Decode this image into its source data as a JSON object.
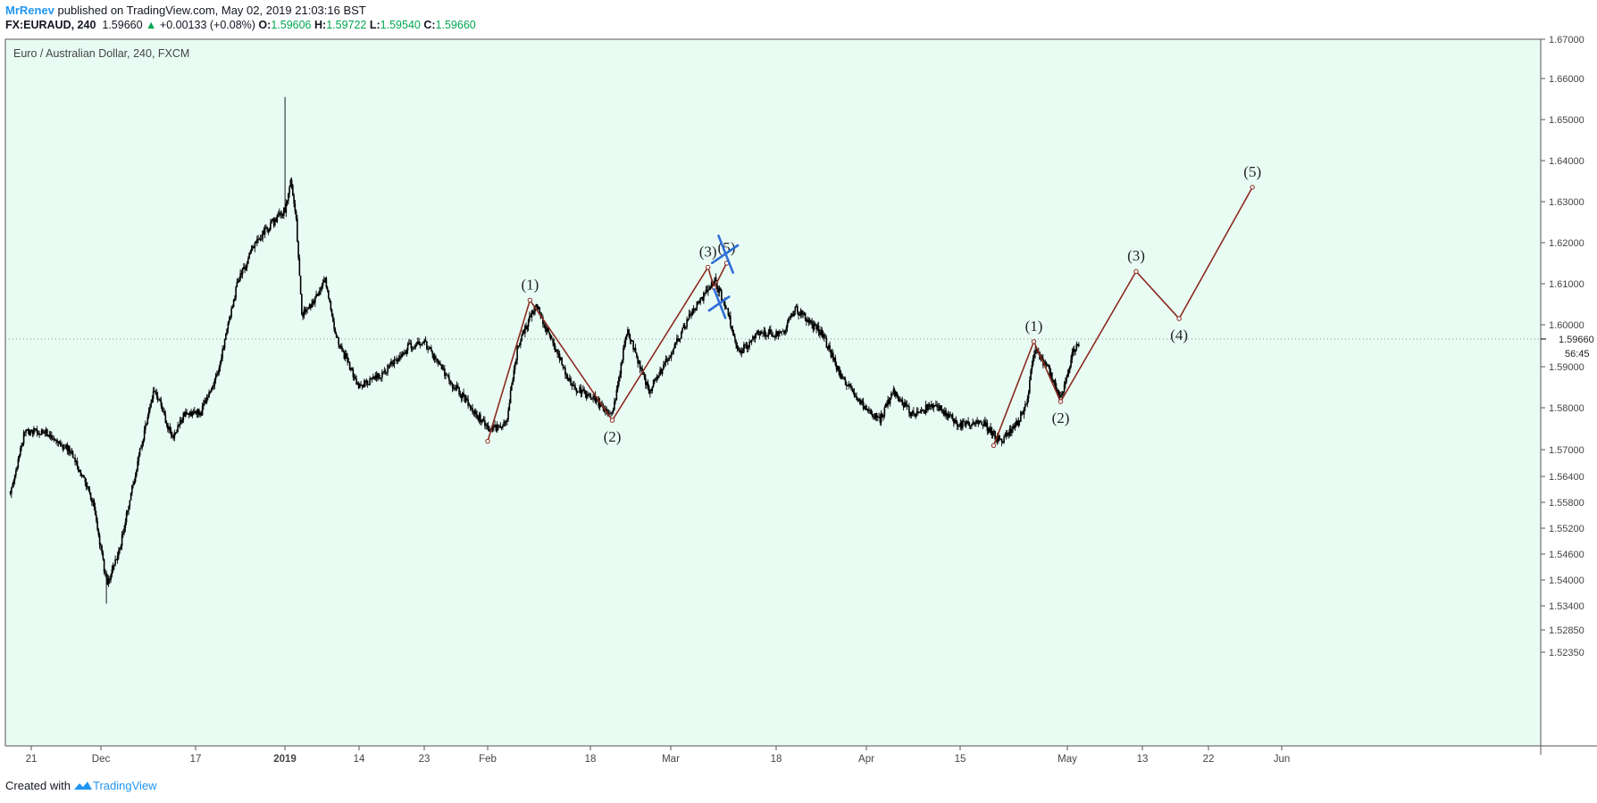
{
  "header": {
    "user": "MrRenev",
    "published_text": "published on TradingView.com, May 02, 2019 21:03:16 BST",
    "symbol": "FX:EURAUD, 240",
    "last": "1.59660",
    "change": "+0.00133 (+0.08%)",
    "o_label": "O:",
    "o": "1.59606",
    "h_label": "H:",
    "h": "1.59722",
    "l_label": "L:",
    "l": "1.59540",
    "c_label": "C:",
    "c": "1.59660"
  },
  "footer": {
    "created_with": "Created with",
    "brand": "TradingView"
  },
  "colors": {
    "background": "#e9fcf4",
    "candle": "#000000",
    "wave": "#8b2a1f",
    "cross": "#2f6fd6",
    "brand": "#2196f3",
    "up": "#00a651"
  },
  "chart_data": {
    "type": "candlestick",
    "title": "Euro / Australian Dollar, 240, FXCM",
    "y_ticks": [
      1.67,
      1.66,
      1.65,
      1.64,
      1.63,
      1.62,
      1.61,
      1.6,
      1.59,
      1.58,
      1.57,
      1.564,
      1.558,
      1.552,
      1.546,
      1.54,
      1.534,
      1.5285,
      1.5235
    ],
    "y_tick_labels": [
      "1.67000",
      "1.66000",
      "1.65000",
      "1.64000",
      "1.63000",
      "1.62000",
      "1.61000",
      "1.60000",
      "1.59000",
      "1.58000",
      "1.57000",
      "1.56400",
      "1.55800",
      "1.55200",
      "1.54600",
      "1.54000",
      "1.53400",
      "1.52850",
      "1.52350"
    ],
    "last_price": 1.5966,
    "last_price_label": "1.59660",
    "countdown": "56:45",
    "x_ticks": [
      {
        "date": "2018-11-21",
        "label": "21"
      },
      {
        "date": "2018-12-01",
        "label": "Dec"
      },
      {
        "date": "2018-12-17",
        "label": "17"
      },
      {
        "date": "2019-01-01",
        "label": "2019"
      },
      {
        "date": "2019-01-14",
        "label": "14"
      },
      {
        "date": "2019-01-23",
        "label": "23"
      },
      {
        "date": "2019-02-01",
        "label": "Feb"
      },
      {
        "date": "2019-02-18",
        "label": "18"
      },
      {
        "date": "2019-03-01",
        "label": "Mar"
      },
      {
        "date": "2019-03-18",
        "label": "18"
      },
      {
        "date": "2019-04-01",
        "label": "Apr"
      },
      {
        "date": "2019-04-15",
        "label": "15"
      },
      {
        "date": "2019-05-01",
        "label": "May"
      },
      {
        "date": "2019-05-13",
        "label": "13"
      },
      {
        "date": "2019-05-22",
        "label": "22"
      },
      {
        "date": "2019-06-01",
        "label": "Jun"
      }
    ],
    "price_anchors": [
      [
        "2018-11-18",
        1.5605
      ],
      [
        "2018-11-20",
        1.574
      ],
      [
        "2018-11-23",
        1.5745
      ],
      [
        "2018-11-27",
        1.569
      ],
      [
        "2018-11-30",
        1.557
      ],
      [
        "2018-12-01",
        1.547
      ],
      [
        "2018-12-02",
        1.539
      ],
      [
        "2018-12-04",
        1.546
      ],
      [
        "2018-12-07",
        1.566
      ],
      [
        "2018-12-10",
        1.585
      ],
      [
        "2018-12-13",
        1.573
      ],
      [
        "2018-12-15",
        1.578
      ],
      [
        "2018-12-18",
        1.579
      ],
      [
        "2018-12-21",
        1.59
      ],
      [
        "2018-12-24",
        1.61
      ],
      [
        "2018-12-27",
        1.62
      ],
      [
        "2018-12-30",
        1.625
      ],
      [
        "2019-01-01",
        1.628
      ],
      [
        "2019-01-02",
        1.635
      ],
      [
        "2019-01-03",
        1.625
      ],
      [
        "2019-01-04",
        1.602
      ],
      [
        "2019-01-07",
        1.608
      ],
      [
        "2019-01-08",
        1.612
      ],
      [
        "2019-01-10",
        1.597
      ],
      [
        "2019-01-14",
        1.585
      ],
      [
        "2019-01-17",
        1.588
      ],
      [
        "2019-01-21",
        1.595
      ],
      [
        "2019-01-23",
        1.596
      ],
      [
        "2019-01-26",
        1.588
      ],
      [
        "2019-02-01",
        1.575
      ],
      [
        "2019-02-04",
        1.576
      ],
      [
        "2019-02-06",
        1.595
      ],
      [
        "2019-02-09",
        1.605
      ],
      [
        "2019-02-12",
        1.595
      ],
      [
        "2019-02-15",
        1.585
      ],
      [
        "2019-02-18",
        1.583
      ],
      [
        "2019-02-21",
        1.578
      ],
      [
        "2019-02-23",
        1.599
      ],
      [
        "2019-02-26",
        1.584
      ],
      [
        "2019-03-01",
        1.593
      ],
      [
        "2019-03-04",
        1.602
      ],
      [
        "2019-03-08",
        1.611
      ],
      [
        "2019-03-10",
        1.604
      ],
      [
        "2019-03-12",
        1.593
      ],
      [
        "2019-03-15",
        1.598
      ],
      [
        "2019-03-19",
        1.598
      ],
      [
        "2019-03-21",
        1.604
      ],
      [
        "2019-03-25",
        1.598
      ],
      [
        "2019-03-28",
        1.588
      ],
      [
        "2019-03-31",
        1.581
      ],
      [
        "2019-04-03",
        1.577
      ],
      [
        "2019-04-05",
        1.584
      ],
      [
        "2019-04-08",
        1.578
      ],
      [
        "2019-04-11",
        1.581
      ],
      [
        "2019-04-15",
        1.576
      ],
      [
        "2019-04-18",
        1.577
      ],
      [
        "2019-04-21",
        1.572
      ],
      [
        "2019-04-23",
        1.575
      ],
      [
        "2019-04-25",
        1.581
      ],
      [
        "2019-04-26",
        1.594
      ],
      [
        "2019-04-28",
        1.59
      ],
      [
        "2019-04-30",
        1.582
      ],
      [
        "2019-05-02",
        1.594
      ],
      [
        "2019-05-03",
        1.5966
      ]
    ],
    "price_high": {
      "date": "2019-01-01",
      "value": 1.6555
    },
    "price_low": {
      "date": "2018-12-02",
      "value": 1.5345
    },
    "waves": [
      {
        "points": [
          [
            "2019-02-01",
            1.572
          ],
          [
            "2019-02-08",
            1.606
          ],
          [
            "2019-02-21",
            1.577
          ],
          [
            "2019-03-07",
            1.614
          ],
          [
            "2019-03-08",
            1.609
          ],
          [
            "2019-03-10",
            1.615
          ]
        ],
        "labels": [
          {
            "point": 1,
            "text": "(1)",
            "pos": "above"
          },
          {
            "point": 2,
            "text": "(2)",
            "pos": "below"
          },
          {
            "point": 3,
            "text": "(3)",
            "pos": "above"
          },
          {
            "point": 5,
            "text": "(5)",
            "pos": "above"
          }
        ]
      },
      {
        "points": [
          [
            "2019-04-20",
            1.571
          ],
          [
            "2019-04-26",
            1.596
          ],
          [
            "2019-04-30",
            1.5815
          ],
          [
            "2019-05-12",
            1.613
          ],
          [
            "2019-05-18",
            1.6015
          ],
          [
            "2019-05-28",
            1.6335
          ]
        ],
        "labels": [
          {
            "point": 1,
            "text": "(1)",
            "pos": "above"
          },
          {
            "point": 2,
            "text": "(2)",
            "pos": "below"
          },
          {
            "point": 3,
            "text": "(3)",
            "pos": "above"
          },
          {
            "point": 4,
            "text": "(4)",
            "pos": "below"
          },
          {
            "point": 5,
            "text": "(5)",
            "pos": "above"
          }
        ]
      }
    ],
    "crosses": [
      {
        "date": "2019-03-10",
        "value": 1.617
      },
      {
        "date": "2019-03-09",
        "value": 1.605
      }
    ]
  }
}
